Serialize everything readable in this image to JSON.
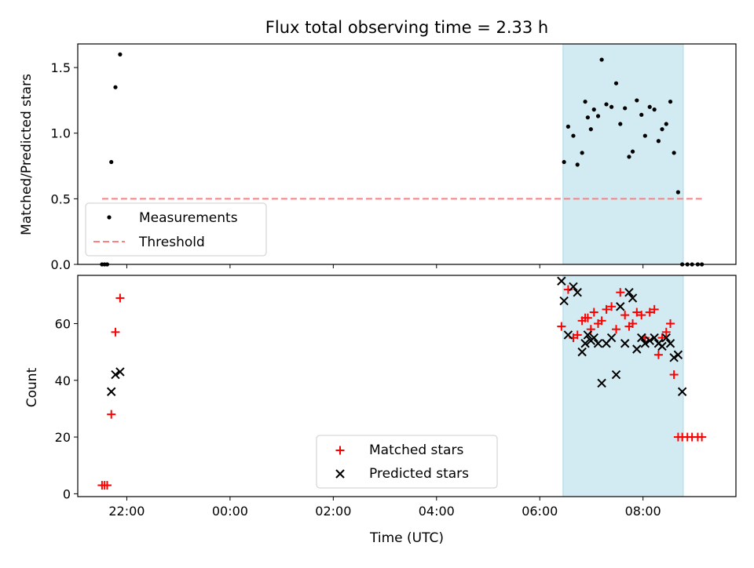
{
  "chart_data": [
    {
      "type": "scatter",
      "title": "Flux total observing time = 2.33 h",
      "xlabel": "",
      "ylabel": "Matched/Predicted stars",
      "xlim_hours": [
        -2.95,
        9.8
      ],
      "ylim": [
        0,
        1.68
      ],
      "yticks": [
        0.0,
        0.5,
        1.0,
        1.5
      ],
      "ytick_labels": [
        "0.0",
        "0.5",
        "1.0",
        "1.5"
      ],
      "shaded_region": {
        "x_start": 6.45,
        "x_end": 8.78,
        "color": "#add8e6"
      },
      "legend": {
        "position": "lower-left",
        "entries": [
          "Measurements",
          "Threshold"
        ]
      },
      "series": [
        {
          "name": "Measurements",
          "style": "dot",
          "color": "#000000",
          "x": [
            -2.48,
            -2.43,
            -2.38,
            -2.3,
            -2.22,
            -2.13,
            6.47,
            6.55,
            6.65,
            6.73,
            6.82,
            6.88,
            6.93,
            6.99,
            7.05,
            7.13,
            7.2,
            7.29,
            7.39,
            7.48,
            7.56,
            7.65,
            7.73,
            7.8,
            7.88,
            7.97,
            8.04,
            8.13,
            8.22,
            8.3,
            8.37,
            8.45,
            8.53,
            8.6,
            8.68,
            8.76,
            8.86,
            8.95,
            9.06,
            9.14
          ],
          "y": [
            0,
            0,
            0,
            0.78,
            1.35,
            1.6,
            0.78,
            1.05,
            0.98,
            0.76,
            0.85,
            1.24,
            1.12,
            1.03,
            1.18,
            1.13,
            1.56,
            1.22,
            1.2,
            1.38,
            1.07,
            1.19,
            0.82,
            0.86,
            1.25,
            1.14,
            0.98,
            1.2,
            1.18,
            0.94,
            1.03,
            1.07,
            1.24,
            0.85,
            0.55,
            0,
            0,
            0,
            0,
            0
          ]
        },
        {
          "name": "Threshold",
          "style": "dashed-line",
          "color": "#ff7f7f",
          "x": [
            -2.48,
            9.14
          ],
          "y": [
            0.5,
            0.5
          ]
        }
      ]
    },
    {
      "type": "scatter",
      "title": "",
      "xlabel": "Time (UTC)",
      "ylabel": "Count",
      "xlim_hours": [
        -2.95,
        9.8
      ],
      "ylim": [
        -1,
        77
      ],
      "yticks": [
        0,
        20,
        40,
        60
      ],
      "ytick_labels": [
        "0",
        "20",
        "40",
        "60"
      ],
      "xticks_hours": [
        -2,
        0,
        2,
        4,
        6,
        8
      ],
      "xtick_labels": [
        "22:00",
        "00:00",
        "02:00",
        "04:00",
        "06:00",
        "08:00"
      ],
      "shaded_region": {
        "x_start": 6.45,
        "x_end": 8.78,
        "color": "#add8e6"
      },
      "legend": {
        "position": "lower-center",
        "entries": [
          "Matched stars",
          "Predicted stars"
        ]
      },
      "series": [
        {
          "name": "Matched stars",
          "style": "plus",
          "color": "#ff0000",
          "x": [
            -2.48,
            -2.43,
            -2.38,
            -2.3,
            -2.22,
            -2.13,
            6.42,
            6.55,
            6.65,
            6.73,
            6.82,
            6.88,
            6.93,
            6.99,
            7.05,
            7.13,
            7.2,
            7.29,
            7.39,
            7.48,
            7.56,
            7.65,
            7.73,
            7.8,
            7.88,
            7.97,
            8.04,
            8.13,
            8.22,
            8.3,
            8.37,
            8.45,
            8.53,
            8.6,
            8.68,
            8.76,
            8.86,
            8.95,
            9.06,
            9.14
          ],
          "y": [
            3,
            3,
            3,
            28,
            57,
            69,
            59,
            72,
            55,
            56,
            61,
            62,
            62,
            58,
            64,
            60,
            61,
            65,
            66,
            58,
            71,
            63,
            59,
            60,
            64,
            63,
            55,
            64,
            65,
            49,
            55,
            57,
            60,
            42,
            20,
            20,
            20,
            20,
            20,
            20
          ]
        },
        {
          "name": "Predicted stars",
          "style": "x",
          "color": "#000000",
          "x": [
            -2.3,
            -2.22,
            -2.13,
            6.42,
            6.47,
            6.55,
            6.65,
            6.73,
            6.82,
            6.88,
            6.93,
            6.99,
            7.05,
            7.13,
            7.2,
            7.29,
            7.39,
            7.48,
            7.56,
            7.65,
            7.73,
            7.8,
            7.88,
            7.97,
            8.04,
            8.13,
            8.22,
            8.3,
            8.37,
            8.45,
            8.53,
            8.6,
            8.68
          ],
          "y": [
            36,
            42,
            43,
            75,
            68,
            56,
            73,
            71,
            50,
            53,
            56,
            54,
            55,
            53,
            39,
            53,
            55,
            42,
            66,
            53,
            71,
            69,
            51,
            55,
            53,
            54,
            55,
            53,
            52,
            55,
            53,
            48,
            49
          ]
        }
      ],
      "extra_predicted_marker": {
        "x": 8.76,
        "y": 36
      }
    }
  ]
}
